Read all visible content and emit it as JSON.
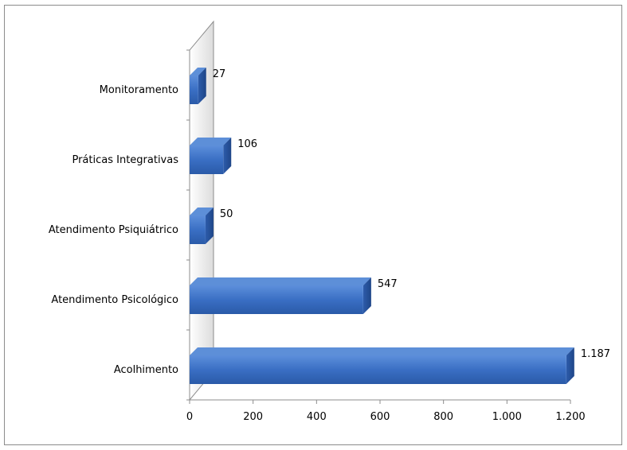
{
  "chart_data": {
    "type": "bar",
    "orientation": "horizontal",
    "style": "3d",
    "categories": [
      "Monitoramento",
      "Práticas Integrativas",
      "Atendimento Psiquiátrico",
      "Atendimento Psicológico",
      "Acolhimento"
    ],
    "values": [
      27,
      106,
      50,
      547,
      1187
    ],
    "value_labels": [
      "27",
      "106",
      "50",
      "547",
      "1.187"
    ],
    "title": "",
    "xlabel": "",
    "ylabel": "",
    "xlim": [
      0,
      1200
    ],
    "x_ticks": [
      0,
      200,
      400,
      600,
      800,
      1000,
      1200
    ],
    "x_tick_labels": [
      "0",
      "200",
      "400",
      "600",
      "800",
      "1.000",
      "1.200"
    ],
    "grid": false,
    "legend": "none",
    "colors": {
      "bar_front": "#3a6fc4",
      "bar_top": "#5d8fd8",
      "bar_side": "#254f94",
      "axis": "#8c8c8c",
      "wall": "#d0d0d0"
    }
  }
}
